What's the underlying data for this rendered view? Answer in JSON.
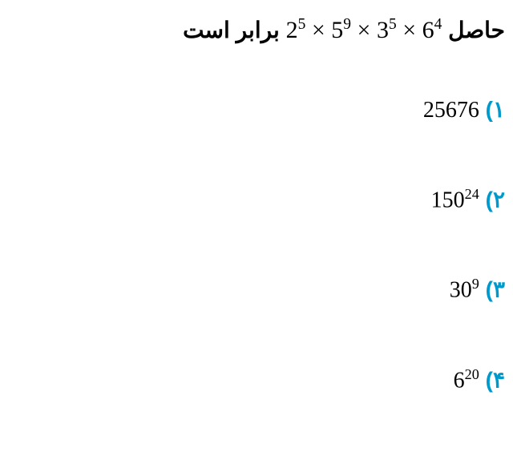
{
  "question": {
    "prefix_text": "حاصل",
    "expression_html": "2<sup>5</sup> × 5<sup>9</sup> × 3<sup>5</sup> × 6<sup>4</sup>",
    "suffix_text": "برابر است",
    "text_color": "#000000",
    "fontsize": 28,
    "fontweight": "bold"
  },
  "options": [
    {
      "number_label": "۱)",
      "value_html": "25676"
    },
    {
      "number_label": "۲)",
      "value_html": "150<sup>24</sup>"
    },
    {
      "number_label": "۳)",
      "value_html": "30<sup>9</sup>"
    },
    {
      "number_label": "۴)",
      "value_html": "6<sup>20</sup>"
    }
  ],
  "colors": {
    "background": "#ffffff",
    "text": "#000000",
    "option_number": "#0099cc"
  }
}
